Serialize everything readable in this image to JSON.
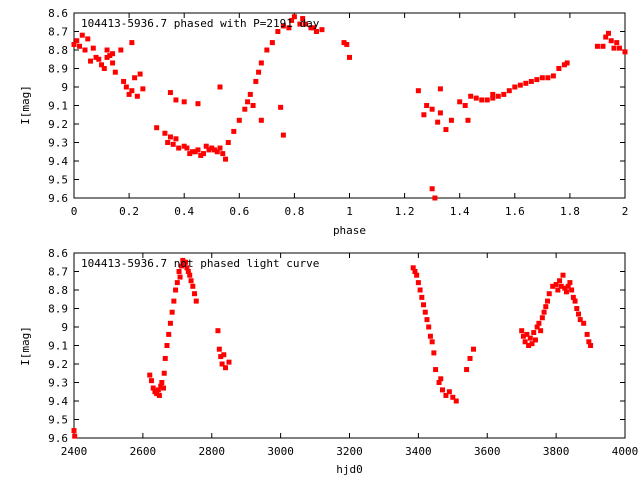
{
  "chart_data": [
    {
      "type": "scatter",
      "title": "104413-5936.7 phased with P=2191 day",
      "xlabel": "phase",
      "ylabel": "I[mag]",
      "xlim": [
        0,
        2
      ],
      "ylim": [
        9.6,
        8.6
      ],
      "y_inverted": true,
      "xticks": [
        0,
        0.2,
        0.4,
        0.6,
        0.8,
        1,
        1.2,
        1.4,
        1.6,
        1.8,
        2
      ],
      "xtick_labels": [
        "0",
        "0.2",
        "0.4",
        "0.6",
        "0.8",
        "1",
        "1.2",
        "1.4",
        "1.6",
        "1.8",
        "2"
      ],
      "yticks": [
        8.6,
        8.7,
        8.8,
        8.9,
        9,
        9.1,
        9.2,
        9.3,
        9.4,
        9.5,
        9.6
      ],
      "ytick_labels": [
        "8.6",
        "8.7",
        "8.8",
        "8.9",
        "9",
        "9.1",
        "9.2",
        "9.3",
        "9.4",
        "9.5",
        "9.6"
      ],
      "marker_color": "#ff0000",
      "series": [
        {
          "x": [
            0.0,
            0.01,
            0.02,
            0.03,
            0.04,
            0.05,
            0.06,
            0.07,
            0.08,
            0.09,
            0.1,
            0.11,
            0.12,
            0.13,
            0.14,
            0.15,
            0.17,
            0.18,
            0.19,
            0.2,
            0.21,
            0.22,
            0.23,
            0.24,
            0.25,
            0.3,
            0.33,
            0.34,
            0.35,
            0.36,
            0.37,
            0.38,
            0.4,
            0.41,
            0.42,
            0.43,
            0.44,
            0.45,
            0.46,
            0.47,
            0.48,
            0.49,
            0.5,
            0.51,
            0.52,
            0.53,
            0.54,
            0.55,
            0.56,
            0.58,
            0.6,
            0.62,
            0.63,
            0.64,
            0.66,
            0.67,
            0.68,
            0.7,
            0.72,
            0.74,
            0.76,
            0.78,
            0.79,
            0.8,
            0.82,
            0.83,
            0.84,
            0.86,
            0.87,
            0.88,
            0.9,
            0.98,
            0.99,
            1.0,
            1.25,
            1.27,
            1.28,
            1.3,
            1.3,
            1.31,
            1.32,
            1.33,
            1.35,
            1.37,
            1.4,
            1.42,
            1.44,
            1.46,
            1.48,
            1.5,
            1.52,
            1.54,
            1.56,
            1.58,
            1.6,
            1.62,
            1.64,
            1.66,
            1.68,
            1.7,
            1.72,
            1.74,
            1.76,
            1.78,
            1.79,
            1.9,
            1.92,
            1.93,
            1.94,
            1.95,
            1.96,
            1.97,
            1.98,
            2.0,
            0.12,
            0.14,
            0.21,
            0.35,
            0.37,
            0.4,
            0.45,
            0.53,
            0.65,
            0.68,
            0.76,
            0.75,
            1.33,
            1.43,
            1.52
          ],
          "y": [
            8.77,
            8.75,
            8.78,
            8.72,
            8.8,
            8.74,
            8.86,
            8.79,
            8.84,
            8.85,
            8.88,
            8.9,
            8.84,
            8.83,
            8.87,
            8.92,
            8.8,
            8.97,
            9.0,
            9.04,
            9.02,
            8.95,
            9.05,
            8.93,
            9.01,
            9.22,
            9.25,
            9.3,
            9.27,
            9.31,
            9.28,
            9.33,
            9.32,
            9.33,
            9.36,
            9.35,
            9.35,
            9.34,
            9.37,
            9.36,
            9.32,
            9.34,
            9.33,
            9.34,
            9.35,
            9.33,
            9.36,
            9.39,
            9.3,
            9.24,
            9.18,
            9.12,
            9.08,
            9.04,
            8.97,
            8.92,
            8.87,
            8.8,
            8.76,
            8.7,
            8.67,
            8.68,
            8.64,
            8.62,
            8.66,
            8.63,
            8.66,
            8.68,
            8.68,
            8.7,
            8.69,
            8.76,
            8.77,
            8.84,
            9.02,
            9.15,
            9.1,
            9.12,
            9.55,
            9.6,
            9.19,
            9.14,
            9.23,
            9.18,
            9.08,
            9.1,
            9.05,
            9.06,
            9.07,
            9.07,
            9.04,
            9.05,
            9.04,
            9.02,
            9.0,
            8.99,
            8.98,
            8.97,
            8.96,
            8.95,
            8.95,
            8.94,
            8.9,
            8.88,
            8.87,
            8.78,
            8.78,
            8.73,
            8.71,
            8.75,
            8.79,
            8.76,
            8.79,
            8.81,
            8.8,
            8.82,
            8.76,
            9.03,
            9.07,
            9.08,
            9.09,
            9.0,
            9.1,
            9.18,
            9.26,
            9.11,
            9.01,
            9.18,
            9.06
          ]
        }
      ]
    },
    {
      "type": "scatter",
      "title": "104413-5936.7 not phased light curve",
      "xlabel": "hjd0",
      "ylabel": "I[mag]",
      "xlim": [
        2400,
        4000
      ],
      "ylim": [
        9.6,
        8.6
      ],
      "y_inverted": true,
      "xticks": [
        2400,
        2600,
        2800,
        3000,
        3200,
        3400,
        3600,
        3800,
        4000
      ],
      "xtick_labels": [
        "2400",
        "2600",
        "2800",
        "3000",
        "3200",
        "3400",
        "3600",
        "3800",
        "4000"
      ],
      "yticks": [
        8.6,
        8.7,
        8.8,
        8.9,
        9,
        9.1,
        9.2,
        9.3,
        9.4,
        9.5,
        9.6
      ],
      "ytick_labels": [
        "8.6",
        "8.7",
        "8.8",
        "8.9",
        "9",
        "9.1",
        "9.2",
        "9.3",
        "9.4",
        "9.5",
        "9.6"
      ],
      "marker_color": "#ff0000",
      "series": [
        {
          "x": [
            2400,
            2402,
            2620,
            2625,
            2630,
            2635,
            2640,
            2645,
            2648,
            2652,
            2655,
            2660,
            2662,
            2665,
            2670,
            2675,
            2680,
            2685,
            2690,
            2695,
            2700,
            2705,
            2708,
            2712,
            2716,
            2720,
            2724,
            2728,
            2732,
            2736,
            2740,
            2745,
            2750,
            2755,
            2818,
            2822,
            2826,
            2830,
            2835,
            2840,
            2850,
            3385,
            3390,
            3395,
            3400,
            3405,
            3410,
            3415,
            3420,
            3425,
            3430,
            3435,
            3440,
            3445,
            3450,
            3460,
            3465,
            3470,
            3480,
            3490,
            3500,
            3510,
            3540,
            3550,
            3560,
            3700,
            3705,
            3710,
            3715,
            3720,
            3725,
            3730,
            3735,
            3740,
            3745,
            3750,
            3755,
            3760,
            3765,
            3770,
            3775,
            3780,
            3790,
            3800,
            3805,
            3810,
            3815,
            3820,
            3825,
            3830,
            3835,
            3840,
            3845,
            3850,
            3855,
            3860,
            3865,
            3870,
            3880,
            3890,
            3895,
            3900
          ],
          "y": [
            9.56,
            9.59,
            9.26,
            9.29,
            9.33,
            9.35,
            9.36,
            9.34,
            9.37,
            9.32,
            9.3,
            9.33,
            9.25,
            9.17,
            9.1,
            9.04,
            8.98,
            8.92,
            8.86,
            8.8,
            8.76,
            8.7,
            8.73,
            8.67,
            8.64,
            8.66,
            8.65,
            8.68,
            8.7,
            8.72,
            8.75,
            8.78,
            8.82,
            8.86,
            9.02,
            9.12,
            9.16,
            9.2,
            9.15,
            9.22,
            9.19,
            8.68,
            8.7,
            8.72,
            8.76,
            8.8,
            8.84,
            8.88,
            8.92,
            8.96,
            9.0,
            9.05,
            9.08,
            9.14,
            9.23,
            9.3,
            9.28,
            9.34,
            9.37,
            9.35,
            9.38,
            9.4,
            9.23,
            9.17,
            9.12,
            9.02,
            9.05,
            9.08,
            9.04,
            9.1,
            9.06,
            9.09,
            9.03,
            9.07,
            9.0,
            8.98,
            9.02,
            8.95,
            8.92,
            8.89,
            8.86,
            8.82,
            8.78,
            8.77,
            8.8,
            8.75,
            8.78,
            8.72,
            8.79,
            8.81,
            8.78,
            8.76,
            8.8,
            8.84,
            8.86,
            8.9,
            8.93,
            8.96,
            8.98,
            9.04,
            9.08,
            9.1
          ]
        }
      ]
    }
  ]
}
